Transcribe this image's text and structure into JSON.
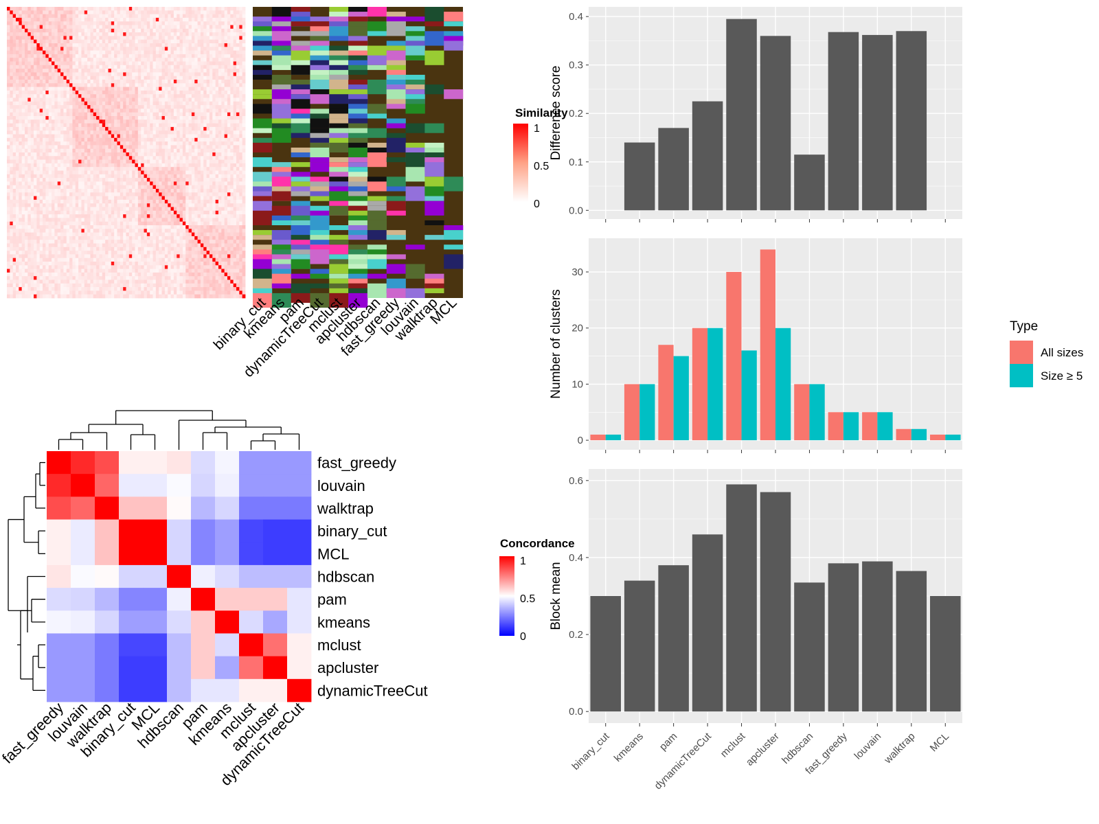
{
  "methods_a": [
    "binary_cut",
    "kmeans",
    "pam",
    "dynamicTreeCut",
    "mclust",
    "apcluster",
    "hdbscan",
    "fast_greedy",
    "louvain",
    "walktrap",
    "MCL"
  ],
  "methods_c": [
    "fast_greedy",
    "louvain",
    "walktrap",
    "binary_cut",
    "MCL",
    "hdbscan",
    "pam",
    "kmeans",
    "mclust",
    "apcluster",
    "dynamicTreeCut"
  ],
  "legends": {
    "similarity": {
      "title": "Similarity",
      "ticks": [
        "1",
        "0.5",
        "0"
      ]
    },
    "concordance": {
      "title": "Concordance",
      "ticks": [
        "1",
        "0.5",
        "0"
      ]
    },
    "type": {
      "title": "Type",
      "items": [
        {
          "label": "All sizes",
          "color": "#F8766D"
        },
        {
          "label": "Size ≥ 5",
          "color": "#00BFC4"
        }
      ]
    }
  },
  "colors": {
    "bar": "#595959",
    "panel": "#EBEBEB",
    "grid": "#FFFFFF",
    "red": "#FF0000",
    "blue": "#0000FF",
    "class_bg": "#4A3410"
  },
  "chart_data": [
    {
      "type": "bar",
      "categories": [
        "binary_cut",
        "kmeans",
        "pam",
        "dynamicTreeCut",
        "mclust",
        "apcluster",
        "hdbscan",
        "fast_greedy",
        "louvain",
        "walktrap",
        "MCL"
      ],
      "values": [
        0.0,
        0.14,
        0.17,
        0.225,
        0.395,
        0.36,
        0.115,
        0.368,
        0.362,
        0.37,
        0.0
      ],
      "ylabel": "Difference score",
      "ylim": [
        0,
        0.4
      ],
      "yticks": [
        "0.0",
        "0.1",
        "0.2",
        "0.3",
        "0.4"
      ]
    },
    {
      "type": "bar",
      "categories": [
        "binary_cut",
        "kmeans",
        "pam",
        "dynamicTreeCut",
        "mclust",
        "apcluster",
        "hdbscan",
        "fast_greedy",
        "louvain",
        "walktrap",
        "MCL"
      ],
      "series": [
        {
          "name": "All sizes",
          "values": [
            1,
            10,
            17,
            20,
            30,
            34,
            10,
            5,
            5,
            2,
            1
          ]
        },
        {
          "name": "Size ≥ 5",
          "values": [
            1,
            10,
            15,
            20,
            16,
            20,
            10,
            5,
            5,
            2,
            1
          ]
        }
      ],
      "ylabel": "Number of clusters",
      "ylim": [
        0,
        35
      ],
      "yticks": [
        "0",
        "10",
        "20",
        "30"
      ],
      "legend_title": "Type",
      "legend": "right"
    },
    {
      "type": "bar",
      "categories": [
        "binary_cut",
        "kmeans",
        "pam",
        "dynamicTreeCut",
        "mclust",
        "apcluster",
        "hdbscan",
        "fast_greedy",
        "louvain",
        "walktrap",
        "MCL"
      ],
      "values": [
        0.3,
        0.34,
        0.38,
        0.46,
        0.59,
        0.57,
        0.335,
        0.385,
        0.39,
        0.365,
        0.3
      ],
      "ylabel": "Block mean",
      "ylim": [
        0,
        0.6
      ],
      "yticks": [
        "0.0",
        "0.2",
        "0.4",
        "0.6"
      ]
    },
    {
      "type": "heatmap",
      "rows": [
        "fast_greedy",
        "louvain",
        "walktrap",
        "binary_cut",
        "MCL",
        "hdbscan",
        "pam",
        "kmeans",
        "mclust",
        "apcluster",
        "dynamicTreeCut"
      ],
      "columns": [
        "fast_greedy",
        "louvain",
        "walktrap",
        "binary_cut",
        "MCL",
        "hdbscan",
        "pam",
        "kmeans",
        "mclust",
        "apcluster",
        "dynamicTreeCut"
      ],
      "values": [
        [
          1.0,
          0.92,
          0.85,
          0.53,
          0.53,
          0.55,
          0.43,
          0.48,
          0.3,
          0.3,
          0.3
        ],
        [
          0.92,
          1.0,
          0.8,
          0.46,
          0.46,
          0.49,
          0.42,
          0.47,
          0.3,
          0.3,
          0.3
        ],
        [
          0.85,
          0.8,
          1.0,
          0.62,
          0.62,
          0.51,
          0.36,
          0.42,
          0.24,
          0.24,
          0.24
        ],
        [
          0.53,
          0.46,
          0.62,
          1.0,
          1.0,
          0.42,
          0.26,
          0.31,
          0.14,
          0.12,
          0.12
        ],
        [
          0.53,
          0.46,
          0.62,
          1.0,
          1.0,
          0.42,
          0.26,
          0.31,
          0.14,
          0.12,
          0.12
        ],
        [
          0.55,
          0.49,
          0.51,
          0.42,
          0.42,
          1.0,
          0.47,
          0.43,
          0.37,
          0.37,
          0.37
        ],
        [
          0.43,
          0.42,
          0.36,
          0.26,
          0.26,
          0.47,
          1.0,
          0.6,
          0.6,
          0.6,
          0.45
        ],
        [
          0.48,
          0.47,
          0.42,
          0.31,
          0.31,
          0.43,
          0.6,
          1.0,
          0.43,
          0.33,
          0.45
        ],
        [
          0.3,
          0.3,
          0.24,
          0.14,
          0.14,
          0.37,
          0.6,
          0.43,
          1.0,
          0.78,
          0.53
        ],
        [
          0.3,
          0.3,
          0.24,
          0.12,
          0.12,
          0.37,
          0.6,
          0.33,
          0.78,
          1.0,
          0.53
        ],
        [
          0.3,
          0.3,
          0.24,
          0.12,
          0.12,
          0.37,
          0.45,
          0.45,
          0.53,
          0.53,
          1.0
        ]
      ]
    }
  ]
}
